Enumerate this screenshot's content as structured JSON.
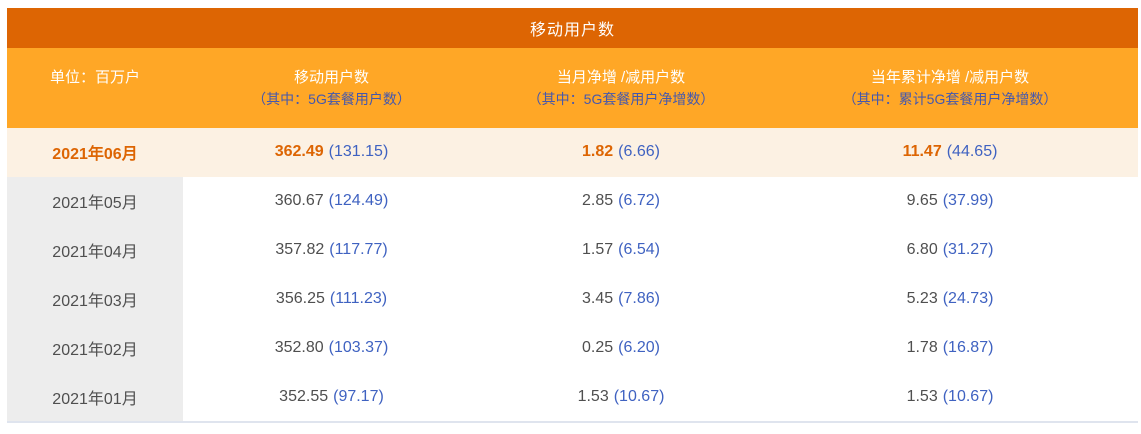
{
  "title": "移动用户数",
  "unit_label": "单位：百万户",
  "columns": [
    {
      "line1": "移动用户数",
      "line2": "（其中：5G套餐用户数）"
    },
    {
      "line1": "当月净增 /减用户数",
      "line2": "（其中：5G套餐用户净增数）"
    },
    {
      "line1": "当年累计净增 /减用户数",
      "line2": "（其中：累计5G套餐用户净增数）"
    }
  ],
  "rows": [
    {
      "month": "2021年06月",
      "highlighted": true,
      "mobile": "362.49",
      "mobile_5g": "(131.15)",
      "net": "1.82",
      "net_5g": "(6.66)",
      "ytd": "11.47",
      "ytd_5g": "(44.65)"
    },
    {
      "month": "2021年05月",
      "highlighted": false,
      "mobile": "360.67",
      "mobile_5g": "(124.49)",
      "net": "2.85",
      "net_5g": "(6.72)",
      "ytd": "9.65",
      "ytd_5g": "(37.99)"
    },
    {
      "month": "2021年04月",
      "highlighted": false,
      "mobile": "357.82",
      "mobile_5g": "(117.77)",
      "net": "1.57",
      "net_5g": "(6.54)",
      "ytd": "6.80",
      "ytd_5g": "(31.27)"
    },
    {
      "month": "2021年03月",
      "highlighted": false,
      "mobile": "356.25",
      "mobile_5g": "(111.23)",
      "net": "3.45",
      "net_5g": "(7.86)",
      "ytd": "5.23",
      "ytd_5g": "(24.73)"
    },
    {
      "month": "2021年02月",
      "highlighted": false,
      "mobile": "352.80",
      "mobile_5g": "(103.37)",
      "net": "0.25",
      "net_5g": "(6.20)",
      "ytd": "1.78",
      "ytd_5g": "(16.87)"
    },
    {
      "month": "2021年01月",
      "highlighted": false,
      "mobile": "352.55",
      "mobile_5g": "(97.17)",
      "net": "1.53",
      "net_5g": "(10.67)",
      "ytd": "1.53",
      "ytd_5g": "(10.67)"
    }
  ],
  "colors": {
    "header_bar": "#dd6503",
    "subheader_bg": "#ffa726",
    "subheader_text": "#ffffff",
    "subheader_subtext": "#4558ad",
    "highlight_row_bg": "#fcf1e3",
    "month_col_bg": "#ededed",
    "accent_orange": "#dd6503",
    "value_blue": "#3f62c1",
    "text_gray": "#4f4f4f",
    "bottom_border": "#dfe4ee"
  },
  "chart_data": {
    "type": "table",
    "title": "移动用户数",
    "unit": "单位：百万户",
    "column_headers": [
      "移动用户数（其中：5G套餐用户数）",
      "当月净增 /减用户数（其中：5G套餐用户净增数）",
      "当年累计净增 /减用户数（其中：累计5G套餐用户净增数）"
    ],
    "rows": [
      {
        "month": "2021年06月",
        "mobile_users": 362.49,
        "mobile_users_5g": 131.15,
        "monthly_net": 1.82,
        "monthly_net_5g": 6.66,
        "ytd_net": 11.47,
        "ytd_net_5g": 44.65
      },
      {
        "month": "2021年05月",
        "mobile_users": 360.67,
        "mobile_users_5g": 124.49,
        "monthly_net": 2.85,
        "monthly_net_5g": 6.72,
        "ytd_net": 9.65,
        "ytd_net_5g": 37.99
      },
      {
        "month": "2021年04月",
        "mobile_users": 357.82,
        "mobile_users_5g": 117.77,
        "monthly_net": 1.57,
        "monthly_net_5g": 6.54,
        "ytd_net": 6.8,
        "ytd_net_5g": 31.27
      },
      {
        "month": "2021年03月",
        "mobile_users": 356.25,
        "mobile_users_5g": 111.23,
        "monthly_net": 3.45,
        "monthly_net_5g": 7.86,
        "ytd_net": 5.23,
        "ytd_net_5g": 24.73
      },
      {
        "month": "2021年02月",
        "mobile_users": 352.8,
        "mobile_users_5g": 103.37,
        "monthly_net": 0.25,
        "monthly_net_5g": 6.2,
        "ytd_net": 1.78,
        "ytd_net_5g": 16.87
      },
      {
        "month": "2021年01月",
        "mobile_users": 352.55,
        "mobile_users_5g": 97.17,
        "monthly_net": 1.53,
        "monthly_net_5g": 10.67,
        "ytd_net": 1.53,
        "ytd_net_5g": 10.67
      }
    ]
  }
}
